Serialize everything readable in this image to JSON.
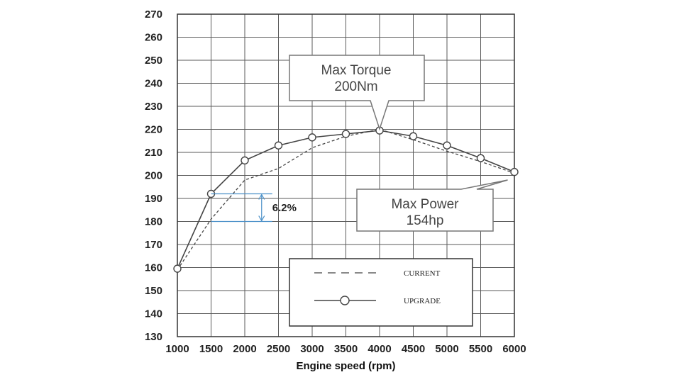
{
  "chart_data": {
    "type": "line",
    "xlabel": "Engine speed (rpm)",
    "ylabel": "",
    "x": [
      1000,
      1500,
      2000,
      2500,
      3000,
      3500,
      4000,
      4500,
      5000,
      5500,
      6000
    ],
    "xticks": [
      1000,
      1500,
      2000,
      2500,
      3000,
      3500,
      4000,
      4500,
      5000,
      5500,
      6000
    ],
    "yticks": [
      130,
      140,
      150,
      160,
      170,
      180,
      190,
      200,
      210,
      220,
      230,
      240,
      250,
      260,
      270
    ],
    "xlim": [
      1000,
      6000
    ],
    "ylim": [
      130,
      270
    ],
    "grid": true,
    "legend_position": "bottom-right",
    "series": [
      {
        "name": "CURRENT",
        "style": "dashed",
        "color": "#444444",
        "x": [
          1000,
          1500,
          2000,
          2500,
          3000,
          3500,
          4000,
          4500,
          5000,
          5500,
          6000
        ],
        "values": [
          159,
          181,
          198,
          203,
          212,
          217,
          220,
          215.5,
          210.5,
          206,
          201
        ]
      },
      {
        "name": "UPGRADE",
        "style": "solid-circle-markers",
        "color": "#444444",
        "x": [
          1000,
          1500,
          2000,
          2500,
          3000,
          3500,
          4000,
          4500,
          5000,
          5500,
          6000
        ],
        "values": [
          159.5,
          192,
          206.5,
          213,
          216.5,
          218,
          219.5,
          217,
          213,
          207.5,
          201.5
        ]
      }
    ],
    "annotations": [
      {
        "id": "max-torque",
        "lines": [
          "Max Torque",
          "200Nm"
        ],
        "points_to": {
          "x": 4000,
          "y": 219.5
        }
      },
      {
        "id": "max-power",
        "lines": [
          "Max Power",
          "154hp"
        ],
        "points_to": {
          "x": 5900,
          "y": 198
        }
      },
      {
        "id": "difference",
        "text": "6.2%",
        "x": 1500,
        "from": 180,
        "to": 192
      }
    ],
    "colors": {
      "grid": "#5a5a5a",
      "line": "#444444",
      "diff": "#4a90c8"
    }
  }
}
